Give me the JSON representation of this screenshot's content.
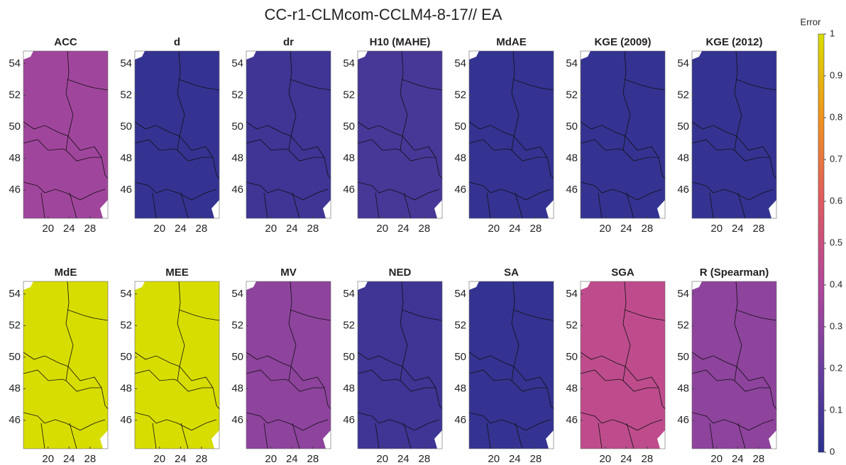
{
  "chart_data": {
    "type": "map-grid",
    "title": "CC-r1-CLMcom-CCLM4-8-17//  EA",
    "xlim": [
      15.3,
      31.4
    ],
    "ylim": [
      44.2,
      54.8
    ],
    "xticks": [
      20,
      24,
      28
    ],
    "yticks": [
      46,
      48,
      50,
      52,
      54
    ],
    "panels": [
      {
        "title": "ACC",
        "value": 0.35
      },
      {
        "title": "d",
        "value": 0.03
      },
      {
        "title": "dr",
        "value": 0.06
      },
      {
        "title": "H10 (MAHE)",
        "value": 0.09
      },
      {
        "title": "MdAE",
        "value": 0.03
      },
      {
        "title": "KGE (2009)",
        "value": 0.03
      },
      {
        "title": "KGE (2012)",
        "value": 0.03
      },
      {
        "title": "MdE",
        "value": 1
      },
      {
        "title": "MEE",
        "value": 1
      },
      {
        "title": "MV",
        "value": 0.3
      },
      {
        "title": "NED",
        "value": 0.06
      },
      {
        "title": "SA",
        "value": 0.03
      },
      {
        "title": "SGA",
        "value": 0.45
      },
      {
        "title": "R (Spearman)",
        "value": 0.3
      }
    ],
    "colorbar": {
      "label": "Error",
      "lim": [
        0,
        1
      ],
      "ticks": [
        0,
        0.1,
        0.2,
        0.3,
        0.4,
        0.5,
        0.6,
        0.7,
        0.8,
        0.9,
        1
      ]
    }
  }
}
